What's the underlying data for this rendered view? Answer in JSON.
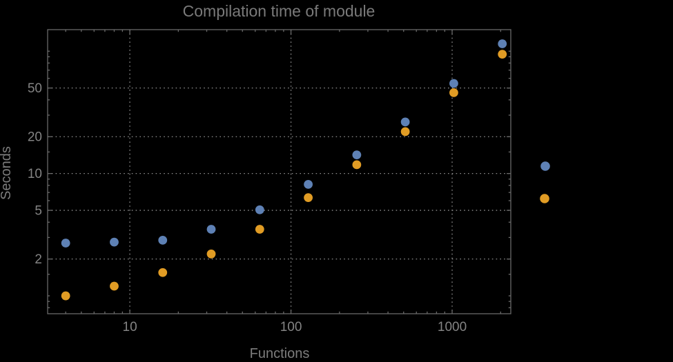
{
  "colors": {
    "background": "#000000",
    "frame": "#6a6a6a",
    "grid": "#8f8f8f",
    "title": "#7a7a7a",
    "axis_label": "#7d7d7d",
    "tick_label": "#848484",
    "series_blue": "#5e81b5",
    "series_orange": "#e19c24"
  },
  "chart_data": {
    "type": "scatter",
    "title": "Compilation time of module",
    "xlabel": "Functions",
    "ylabel": "Seconds",
    "x_scale": "log",
    "y_scale": "log",
    "xlim": [
      3.09,
      2312
    ],
    "ylim": [
      0.714,
      150
    ],
    "grid": "dotted, at major ticks only",
    "legend_position": "right-of-frame, markers only (no text)",
    "x_major_ticks": [
      10,
      100,
      1000
    ],
    "x_major_tick_labels": [
      "10",
      "100",
      "1000"
    ],
    "x_minor_ticks": [
      4,
      5,
      6,
      7,
      8,
      9,
      20,
      30,
      40,
      50,
      60,
      70,
      80,
      90,
      200,
      300,
      400,
      500,
      600,
      700,
      800,
      900,
      2000
    ],
    "y_major_ticks": [
      2,
      5,
      10,
      20,
      50
    ],
    "y_major_tick_labels": [
      "2",
      "5",
      "10",
      "20",
      "50"
    ],
    "y_minor_ticks": [
      0.8,
      0.9,
      1,
      1.5,
      3,
      4,
      6,
      7,
      8,
      9,
      15,
      30,
      40,
      60,
      70,
      80,
      90,
      100
    ],
    "gridlines_x": [
      10,
      100,
      1000
    ],
    "gridlines_y": [
      2,
      5,
      10,
      20,
      50
    ],
    "x": [
      4,
      8,
      16,
      32,
      64,
      128,
      256,
      512,
      1024,
      2048
    ],
    "series": [
      {
        "name": "series-1-blue",
        "color": "#5e81b5",
        "values": [
          2.7,
          2.75,
          2.85,
          3.5,
          5.05,
          8.15,
          14.2,
          26.4,
          54.5,
          115
        ]
      },
      {
        "name": "series-2-orange",
        "color": "#e19c24",
        "values": [
          1.0,
          1.2,
          1.55,
          2.2,
          3.5,
          6.35,
          11.8,
          22.0,
          45.8,
          94.5
        ]
      }
    ],
    "legend_markers": [
      {
        "name": "legend-marker-series-1",
        "color": "#5e81b5"
      },
      {
        "name": "legend-marker-series-2",
        "color": "#e19c24"
      }
    ]
  }
}
